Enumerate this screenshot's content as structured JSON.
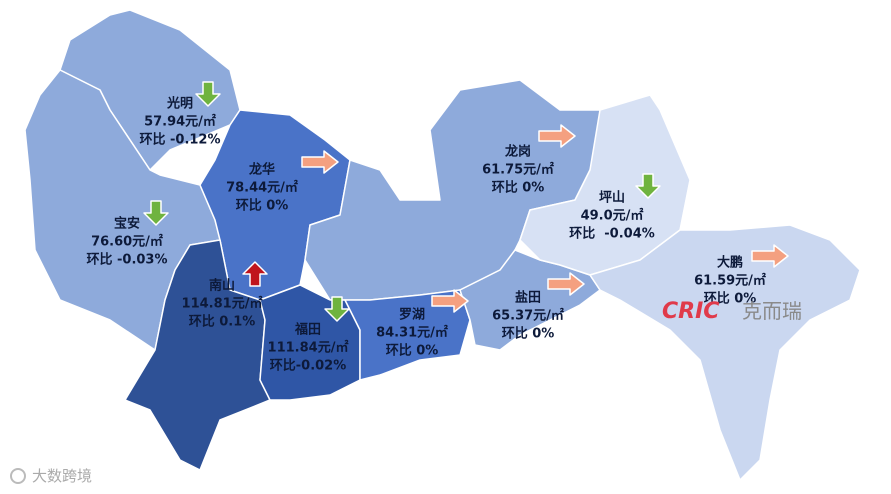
{
  "districts": [
    {
      "name": "光明",
      "price": "57.94元/㎡",
      "change": "环比 -0.12%"
    },
    {
      "name": "宝安",
      "price": "76.60元/㎡",
      "change": "环比 -0.03%"
    },
    {
      "name": "龙华",
      "price": "78.44元/㎡",
      "change": "环比 0%"
    },
    {
      "name": "南山",
      "price": "114.81元/㎡",
      "change": "环比 0.1%"
    },
    {
      "name": "福田",
      "price": "111.84元/㎡",
      "change": "环比-0.02%"
    },
    {
      "name": "罗湖",
      "price": "84.31元/㎡",
      "change": "环比 0%"
    },
    {
      "name": "龙岗",
      "price": "61.75元/㎡",
      "change": "环比 0%"
    },
    {
      "name": "坪山",
      "price": "49.0元/㎡",
      "change": "环比  -0.04%"
    },
    {
      "name": "盐田",
      "price": "65.37元/㎡",
      "change": "环比 0%"
    },
    {
      "name": "大鹏",
      "price": "61.59元/㎡",
      "change": "环比 0%"
    }
  ],
  "watermarks": {
    "brand": "CRIC",
    "brand_cn": "克而瑞",
    "corner": "大数跨境"
  }
}
